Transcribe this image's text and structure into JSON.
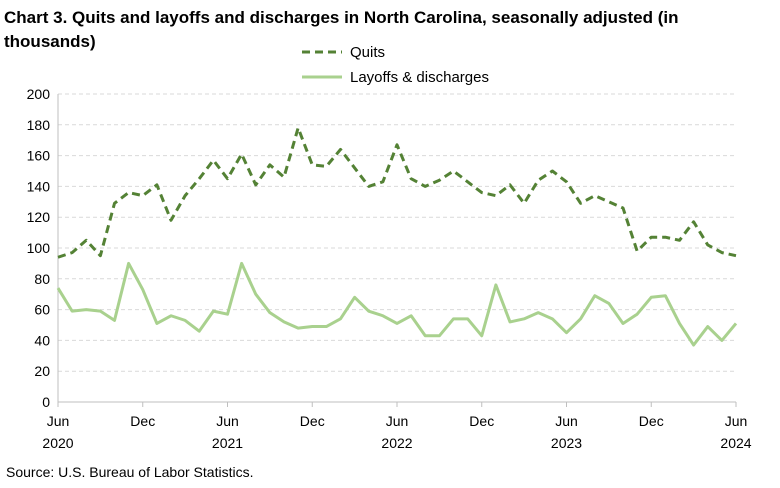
{
  "title": "Chart 3. Quits and layoffs and discharges in North Carolina, seasonally adjusted (in thousands)",
  "source": "Source: U.S. Bureau of Labor Statistics.",
  "chart_data": {
    "type": "line",
    "title": "Chart 3. Quits and layoffs and discharges in North Carolina, seasonally adjusted (in thousands)",
    "xlabel": "",
    "ylabel": "",
    "ylim": [
      0,
      200
    ],
    "yticks": [
      0,
      20,
      40,
      60,
      80,
      100,
      120,
      140,
      160,
      180,
      200
    ],
    "grid": true,
    "legend_position": "top-center",
    "x_start": "Jun 2020",
    "x_end": "Jun 2024",
    "x_tick_labels": [
      {
        "month": "Jun",
        "year": "2020"
      },
      {
        "month": "Dec",
        "year": ""
      },
      {
        "month": "Jun",
        "year": "2021"
      },
      {
        "month": "Dec",
        "year": ""
      },
      {
        "month": "Jun",
        "year": "2022"
      },
      {
        "month": "Dec",
        "year": ""
      },
      {
        "month": "Jun",
        "year": "2023"
      },
      {
        "month": "Dec",
        "year": ""
      },
      {
        "month": "Jun",
        "year": "2024"
      }
    ],
    "series": [
      {
        "name": "Quits",
        "color": "#548235",
        "line_style": "dashed",
        "values": [
          94,
          97,
          105,
          95,
          129,
          136,
          134,
          141,
          118,
          134,
          145,
          157,
          145,
          161,
          141,
          154,
          146,
          178,
          154,
          153,
          164,
          152,
          140,
          143,
          167,
          145,
          140,
          144,
          150,
          143,
          136,
          134,
          141,
          129,
          144,
          150,
          143,
          129,
          134,
          130,
          126,
          98,
          107,
          107,
          105,
          117,
          102,
          97,
          95
        ]
      },
      {
        "name": "Layoffs & discharges",
        "color": "#a9d18e",
        "line_style": "solid",
        "values": [
          74,
          59,
          60,
          59,
          53,
          90,
          73,
          51,
          56,
          53,
          46,
          59,
          57,
          90,
          70,
          58,
          52,
          48,
          49,
          49,
          54,
          68,
          59,
          56,
          51,
          56,
          43,
          43,
          54,
          54,
          43,
          76,
          52,
          54,
          58,
          54,
          45,
          54,
          69,
          64,
          51,
          57,
          68,
          69,
          51,
          37,
          49,
          40,
          51
        ]
      }
    ]
  }
}
